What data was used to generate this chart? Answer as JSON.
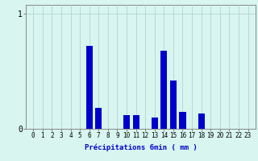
{
  "hours": [
    0,
    1,
    2,
    3,
    4,
    5,
    6,
    7,
    8,
    9,
    10,
    11,
    12,
    13,
    14,
    15,
    16,
    17,
    18,
    19,
    20,
    21,
    22,
    23
  ],
  "values": [
    0,
    0,
    0,
    0,
    0,
    0,
    0.72,
    0.18,
    0,
    0,
    0.12,
    0.12,
    0,
    0.1,
    0.68,
    0.42,
    0.15,
    0,
    0.13,
    0,
    0,
    0,
    0,
    0
  ],
  "bar_color": "#0000cc",
  "bg_color": "#d8f5f0",
  "grid_color": "#aacece",
  "xlabel": "Précipitations 6min ( mm )",
  "xlabel_color": "#0000cc",
  "ylim": [
    0,
    1.08
  ],
  "yticks": [
    0,
    1
  ],
  "ytick_labels": [
    "0",
    "1"
  ],
  "bar_width": 0.7,
  "axis_color": "#888888",
  "tick_fontsize": 5.5,
  "xlabel_fontsize": 6.5
}
